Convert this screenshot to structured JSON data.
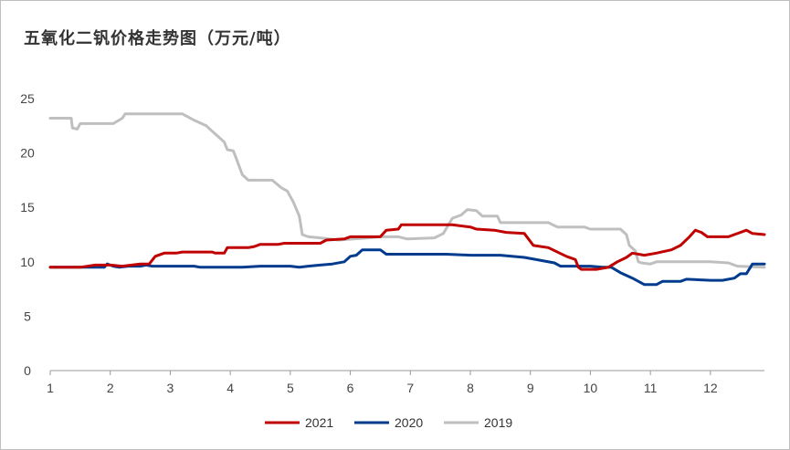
{
  "chart_data": {
    "type": "line",
    "title": "五氧化二钒价格走势图（万元/吨）",
    "xlabel": "",
    "ylabel": "",
    "xlim": [
      1,
      12.9
    ],
    "ylim": [
      0,
      25
    ],
    "x_ticks": [
      1,
      2,
      3,
      4,
      5,
      6,
      7,
      8,
      9,
      10,
      11,
      12
    ],
    "x_tick_labels": [
      "1",
      "2",
      "3",
      "4",
      "5",
      "6",
      "7",
      "8",
      "9",
      "10",
      "11",
      "12"
    ],
    "y_ticks": [
      0,
      5,
      10,
      15,
      20,
      25
    ],
    "y_tick_labels": [
      "0",
      "5",
      "10",
      "15",
      "20",
      "25"
    ],
    "grid": false,
    "legend_position": "bottom-center",
    "series": [
      {
        "name": "2021",
        "color": "#c00000",
        "points": [
          [
            1.0,
            9.5
          ],
          [
            1.5,
            9.5
          ],
          [
            1.75,
            9.7
          ],
          [
            2.0,
            9.7
          ],
          [
            2.2,
            9.6
          ],
          [
            2.5,
            9.8
          ],
          [
            2.65,
            9.8
          ],
          [
            2.75,
            10.5
          ],
          [
            2.9,
            10.8
          ],
          [
            3.1,
            10.8
          ],
          [
            3.2,
            10.9
          ],
          [
            3.7,
            10.9
          ],
          [
            3.75,
            10.8
          ],
          [
            3.9,
            10.8
          ],
          [
            3.95,
            11.3
          ],
          [
            4.3,
            11.3
          ],
          [
            4.4,
            11.4
          ],
          [
            4.5,
            11.6
          ],
          [
            4.8,
            11.6
          ],
          [
            4.9,
            11.7
          ],
          [
            5.5,
            11.7
          ],
          [
            5.6,
            12.0
          ],
          [
            5.9,
            12.1
          ],
          [
            6.0,
            12.3
          ],
          [
            6.5,
            12.3
          ],
          [
            6.6,
            12.9
          ],
          [
            6.8,
            13.0
          ],
          [
            6.85,
            13.4
          ],
          [
            7.7,
            13.4
          ],
          [
            8.0,
            13.2
          ],
          [
            8.1,
            13.0
          ],
          [
            8.4,
            12.9
          ],
          [
            8.6,
            12.7
          ],
          [
            8.9,
            12.6
          ],
          [
            9.05,
            11.5
          ],
          [
            9.3,
            11.3
          ],
          [
            9.6,
            10.5
          ],
          [
            9.75,
            10.2
          ],
          [
            9.8,
            9.5
          ],
          [
            9.85,
            9.3
          ],
          [
            10.1,
            9.3
          ],
          [
            10.3,
            9.5
          ],
          [
            10.45,
            10.0
          ],
          [
            10.6,
            10.4
          ],
          [
            10.7,
            10.8
          ],
          [
            10.9,
            10.6
          ],
          [
            11.1,
            10.8
          ],
          [
            11.35,
            11.1
          ],
          [
            11.5,
            11.5
          ],
          [
            11.65,
            12.3
          ],
          [
            11.75,
            12.9
          ],
          [
            11.85,
            12.7
          ],
          [
            11.95,
            12.3
          ],
          [
            12.3,
            12.3
          ],
          [
            12.5,
            12.7
          ],
          [
            12.6,
            12.9
          ],
          [
            12.7,
            12.6
          ],
          [
            12.9,
            12.5
          ]
        ]
      },
      {
        "name": "2020",
        "color": "#003b8e",
        "points": [
          [
            1.0,
            9.5
          ],
          [
            1.9,
            9.5
          ],
          [
            1.95,
            9.8
          ],
          [
            2.05,
            9.6
          ],
          [
            2.15,
            9.5
          ],
          [
            2.3,
            9.6
          ],
          [
            2.5,
            9.6
          ],
          [
            2.6,
            9.7
          ],
          [
            2.7,
            9.6
          ],
          [
            3.4,
            9.6
          ],
          [
            3.5,
            9.5
          ],
          [
            4.0,
            9.5
          ],
          [
            4.2,
            9.5
          ],
          [
            4.5,
            9.6
          ],
          [
            5.0,
            9.6
          ],
          [
            5.15,
            9.5
          ],
          [
            5.3,
            9.6
          ],
          [
            5.5,
            9.7
          ],
          [
            5.7,
            9.8
          ],
          [
            5.9,
            10.0
          ],
          [
            6.0,
            10.5
          ],
          [
            6.1,
            10.6
          ],
          [
            6.2,
            11.1
          ],
          [
            6.5,
            11.1
          ],
          [
            6.6,
            10.7
          ],
          [
            7.0,
            10.7
          ],
          [
            7.6,
            10.7
          ],
          [
            8.0,
            10.6
          ],
          [
            8.5,
            10.6
          ],
          [
            8.9,
            10.4
          ],
          [
            9.1,
            10.2
          ],
          [
            9.4,
            9.9
          ],
          [
            9.5,
            9.6
          ],
          [
            10.0,
            9.6
          ],
          [
            10.2,
            9.5
          ],
          [
            10.35,
            9.5
          ],
          [
            10.5,
            9.0
          ],
          [
            10.7,
            8.5
          ],
          [
            10.9,
            7.9
          ],
          [
            11.1,
            7.9
          ],
          [
            11.2,
            8.2
          ],
          [
            11.5,
            8.2
          ],
          [
            11.6,
            8.4
          ],
          [
            12.0,
            8.3
          ],
          [
            12.2,
            8.3
          ],
          [
            12.4,
            8.5
          ],
          [
            12.5,
            8.9
          ],
          [
            12.6,
            8.9
          ],
          [
            12.7,
            9.8
          ],
          [
            12.9,
            9.8
          ]
        ]
      },
      {
        "name": "2019",
        "color": "#bfbfbf",
        "points": [
          [
            1.0,
            23.2
          ],
          [
            1.35,
            23.2
          ],
          [
            1.37,
            22.3
          ],
          [
            1.45,
            22.2
          ],
          [
            1.5,
            22.7
          ],
          [
            2.05,
            22.7
          ],
          [
            2.2,
            23.2
          ],
          [
            2.25,
            23.6
          ],
          [
            3.2,
            23.6
          ],
          [
            3.4,
            23.0
          ],
          [
            3.6,
            22.5
          ],
          [
            3.7,
            22.0
          ],
          [
            3.8,
            21.5
          ],
          [
            3.9,
            21.0
          ],
          [
            3.95,
            20.3
          ],
          [
            4.05,
            20.2
          ],
          [
            4.1,
            19.5
          ],
          [
            4.2,
            18.0
          ],
          [
            4.3,
            17.5
          ],
          [
            4.7,
            17.5
          ],
          [
            4.85,
            16.8
          ],
          [
            4.95,
            16.5
          ],
          [
            5.05,
            15.5
          ],
          [
            5.15,
            14.2
          ],
          [
            5.2,
            12.5
          ],
          [
            5.3,
            12.3
          ],
          [
            5.5,
            12.2
          ],
          [
            5.8,
            12.0
          ],
          [
            6.3,
            12.2
          ],
          [
            6.5,
            12.3
          ],
          [
            6.8,
            12.3
          ],
          [
            6.95,
            12.1
          ],
          [
            7.4,
            12.2
          ],
          [
            7.55,
            12.6
          ],
          [
            7.7,
            14.0
          ],
          [
            7.85,
            14.3
          ],
          [
            7.95,
            14.8
          ],
          [
            8.1,
            14.7
          ],
          [
            8.2,
            14.2
          ],
          [
            8.45,
            14.2
          ],
          [
            8.5,
            13.6
          ],
          [
            9.3,
            13.6
          ],
          [
            9.45,
            13.2
          ],
          [
            9.9,
            13.2
          ],
          [
            10.0,
            13.0
          ],
          [
            10.5,
            13.0
          ],
          [
            10.6,
            12.5
          ],
          [
            10.65,
            11.5
          ],
          [
            10.75,
            11.0
          ],
          [
            10.8,
            10.0
          ],
          [
            10.85,
            9.9
          ],
          [
            11.0,
            9.8
          ],
          [
            11.1,
            10.0
          ],
          [
            11.4,
            10.0
          ],
          [
            11.6,
            10.0
          ],
          [
            12.0,
            10.0
          ],
          [
            12.3,
            9.9
          ],
          [
            12.45,
            9.6
          ],
          [
            12.9,
            9.5
          ]
        ]
      }
    ]
  }
}
